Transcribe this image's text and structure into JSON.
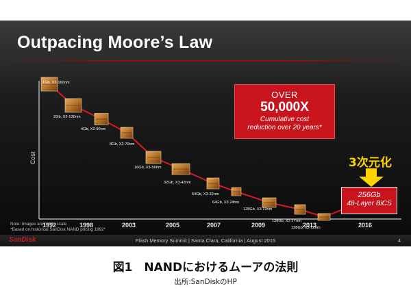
{
  "slide": {
    "title": "Outpacing Moore’s Law",
    "callout": {
      "line1": "OVER",
      "line2": "50,000X",
      "line3": "Cumulative cost",
      "line4": "reduction over 20 years*"
    },
    "highlight_label": "3次元化",
    "bics": {
      "line1": "256Gb",
      "line2": "48-Layer BiCS"
    },
    "note1": "Note: Images are not to scale",
    "note2": "*Based on historical SanDisk NAND pricing 1992*",
    "logo": "SanDisk",
    "footer": "Flash Memory Summit | Santa Clara, California | August 2015",
    "page_number": "4"
  },
  "chart_data": {
    "type": "line",
    "ylabel": "Cost",
    "x_ticks": [
      "1992",
      "1998",
      "2003",
      "2005",
      "2007",
      "2009",
      "2013",
      "2016"
    ],
    "points": [
      {
        "label": "1Gb, X2-160nm"
      },
      {
        "label": "2Gb, X2-130nm"
      },
      {
        "label": "4Gb, X2-90nm"
      },
      {
        "label": "8Gb, X2-70nm"
      },
      {
        "label": "16Gb, X3-56nm"
      },
      {
        "label": "32Gb, X3-43nm"
      },
      {
        "label": "64Gb, X3-32nm"
      },
      {
        "label": "64Gb, X3 24nm"
      },
      {
        "label": "128Gb, X3 19nm"
      },
      {
        "label": "128Gb, X3 1Ynm"
      },
      {
        "label": "128Gb, X3 1Znm"
      }
    ],
    "colors": {
      "line": "#d41b22",
      "chip": "#b8742a",
      "axis": "#cfcfcf"
    }
  },
  "caption": "図1　NANDにおけるムーアの法則",
  "source": "出所:SanDiskのHP"
}
